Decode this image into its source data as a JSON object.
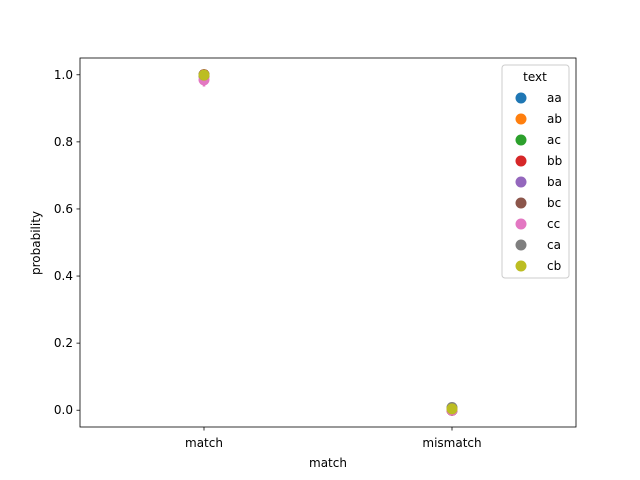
{
  "chart_data": {
    "type": "scatter",
    "title": "",
    "xlabel": "match",
    "ylabel": "probability",
    "categories": [
      "match",
      "mismatch"
    ],
    "ylim": [
      -0.05,
      1.05
    ],
    "yticks": [
      "0.0",
      "0.2",
      "0.4",
      "0.6",
      "0.8",
      "1.0"
    ],
    "grid": false,
    "legend": {
      "title": "text",
      "placement": "top-right"
    },
    "series": [
      {
        "name": "aa",
        "color": "#1f77b4",
        "values": [
          1.0,
          0.0
        ]
      },
      {
        "name": "ab",
        "color": "#ff7f0e",
        "values": [
          1.0,
          0.0
        ]
      },
      {
        "name": "ac",
        "color": "#2ca02c",
        "values": [
          1.0,
          0.0
        ]
      },
      {
        "name": "bb",
        "color": "#d62728",
        "values": [
          1.0,
          0.0
        ]
      },
      {
        "name": "ba",
        "color": "#9467bd",
        "values": [
          0.998,
          0.002
        ]
      },
      {
        "name": "bc",
        "color": "#8c564b",
        "values": [
          0.997,
          0.003
        ]
      },
      {
        "name": "cc",
        "color": "#e377c2",
        "values": [
          0.985,
          0.0
        ],
        "err": [
          [
            0.965,
            0.995
          ],
          [
            0.0,
            0.0
          ]
        ]
      },
      {
        "name": "ca",
        "color": "#7f7f7f",
        "values": [
          0.999,
          0.008
        ],
        "err": [
          [
            0.999,
            0.999
          ],
          [
            -0.005,
            0.02
          ]
        ]
      },
      {
        "name": "cb",
        "color": "#bcbd22",
        "values": [
          0.999,
          0.004
        ]
      }
    ]
  }
}
